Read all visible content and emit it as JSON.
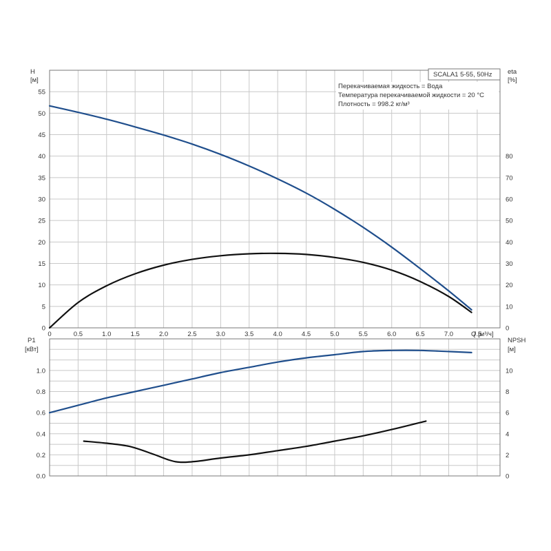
{
  "chart_data": [
    {
      "type": "line",
      "title": "SCALA1 5-55, 50Hz",
      "annotations": [
        "Перекачиваемая жидкость = Вода",
        "Температура перекачиваемой жидкости = 20 °C",
        "Плотность = 998.2 кг/м³"
      ],
      "xlabel": "Q [м³/ч]",
      "x_unit_label": "Q [м³/ч]",
      "xlim": [
        0,
        7.9
      ],
      "x_ticks": [
        "0",
        "0.5",
        "1.0",
        "1.5",
        "2.0",
        "2.5",
        "3.0",
        "3.5",
        "4.0",
        "4.5",
        "5.0",
        "5.5",
        "6.0",
        "6.5",
        "7.0",
        "7.5"
      ],
      "ylabel": "H",
      "ylabel_unit": "[м]",
      "ylim": [
        0,
        60
      ],
      "y_ticks": [
        "0",
        "5",
        "10",
        "15",
        "20",
        "25",
        "30",
        "35",
        "40",
        "45",
        "50",
        "55"
      ],
      "y2label": "eta",
      "y2label_unit": "[%]",
      "y2lim": [
        0,
        120
      ],
      "y2_ticks": [
        "0",
        "10",
        "20",
        "30",
        "40",
        "50",
        "60",
        "70",
        "80"
      ],
      "grid": true,
      "series": [
        {
          "color": "#1f4e8c",
          "axis": "left",
          "x": [
            0,
            0.5,
            1.0,
            1.5,
            2.0,
            2.5,
            3.0,
            3.5,
            4.0,
            4.5,
            5.0,
            5.5,
            6.0,
            6.5,
            7.0,
            7.4
          ],
          "values": [
            51.7,
            50.2,
            48.6,
            46.8,
            44.9,
            42.8,
            40.4,
            37.7,
            34.7,
            31.4,
            27.6,
            23.4,
            18.8,
            13.8,
            8.6,
            4.2
          ]
        },
        {
          "color": "#111111",
          "axis": "right",
          "x": [
            0,
            0.5,
            1.0,
            1.5,
            2.0,
            2.5,
            3.0,
            3.5,
            4.0,
            4.5,
            5.0,
            5.5,
            6.0,
            6.5,
            7.0,
            7.4
          ],
          "values": [
            0,
            11.8,
            19.6,
            25.2,
            29.2,
            31.9,
            33.6,
            34.5,
            34.7,
            34.2,
            32.8,
            30.5,
            26.9,
            21.6,
            14.6,
            7.2
          ]
        }
      ]
    },
    {
      "type": "line",
      "xlim": [
        0,
        7.9
      ],
      "ylabel": "P1",
      "ylabel_unit": "[кВт]",
      "ylim": [
        0,
        1.3
      ],
      "y_ticks": [
        "0.0",
        "0.2",
        "0.4",
        "0.6",
        "0.8",
        "1.0"
      ],
      "y2label": "NPSH",
      "y2label_unit": "[м]",
      "y2lim": [
        0,
        13
      ],
      "y2_ticks": [
        "0",
        "2",
        "4",
        "6",
        "8",
        "10"
      ],
      "grid": true,
      "series": [
        {
          "color": "#1f4e8c",
          "axis": "left",
          "x": [
            0,
            0.5,
            1.0,
            1.5,
            2.0,
            2.5,
            3.0,
            3.5,
            4.0,
            4.5,
            5.0,
            5.5,
            6.0,
            6.5,
            7.0,
            7.4
          ],
          "values": [
            0.6,
            0.67,
            0.74,
            0.8,
            0.86,
            0.92,
            0.98,
            1.03,
            1.08,
            1.12,
            1.15,
            1.18,
            1.19,
            1.19,
            1.18,
            1.17
          ]
        },
        {
          "color": "#111111",
          "axis": "right",
          "x": [
            0.6,
            1.0,
            1.4,
            1.8,
            2.1,
            2.3,
            2.6,
            3.0,
            3.5,
            4.0,
            4.5,
            5.0,
            5.5,
            6.0,
            6.6
          ],
          "values": [
            3.3,
            3.1,
            2.8,
            2.1,
            1.5,
            1.3,
            1.4,
            1.7,
            2.0,
            2.4,
            2.8,
            3.3,
            3.8,
            4.4,
            5.2
          ]
        }
      ]
    }
  ]
}
